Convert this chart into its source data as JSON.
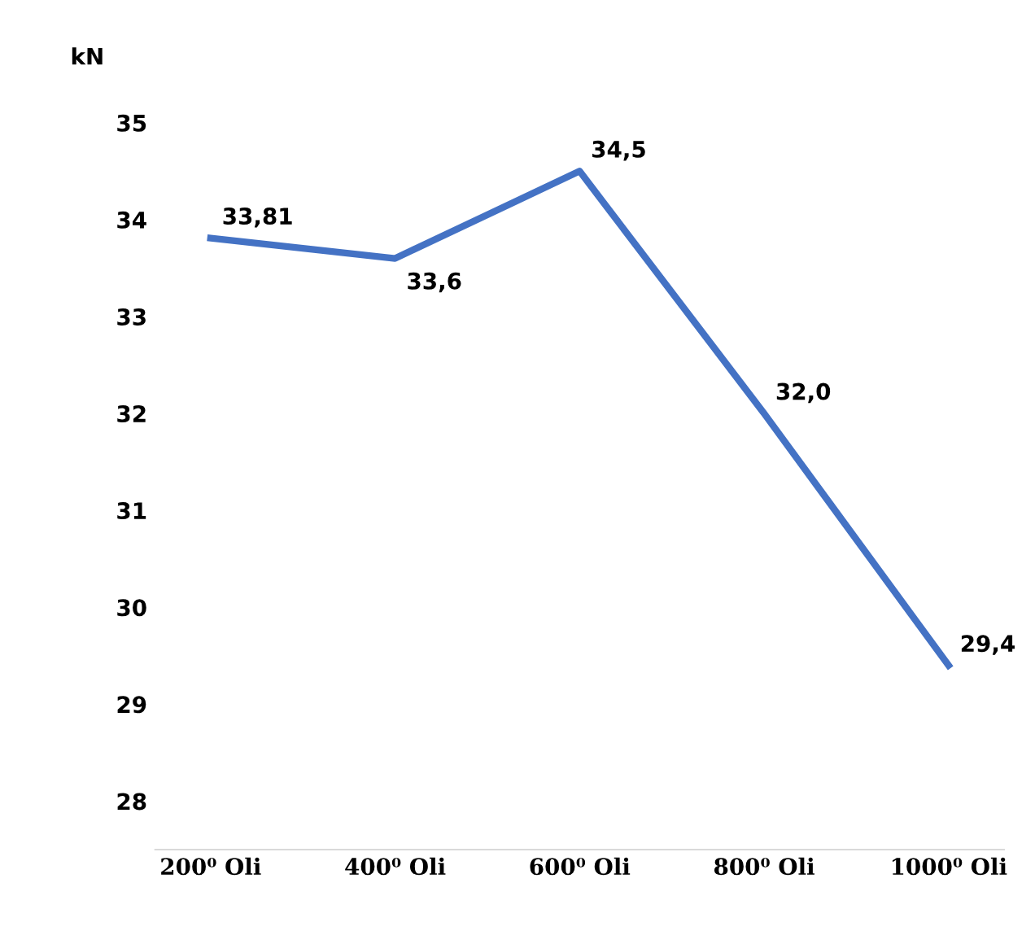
{
  "chart_data": {
    "type": "line",
    "ylabel": "kN",
    "categories": [
      "200⁰ Oli",
      "400⁰ Oli",
      "600⁰ Oli",
      "800⁰ Oli",
      "1000⁰ Oli"
    ],
    "series": [
      {
        "color": "#4472c4",
        "values": [
          33.81,
          33.6,
          34.5,
          32.0,
          29.4
        ],
        "value_labels": [
          "33,81",
          "33,6",
          "34,5",
          "32,0",
          "29,4"
        ]
      }
    ],
    "ylim": [
      27.5,
      35
    ],
    "yticks": [
      28,
      29,
      30,
      31,
      32,
      33,
      34,
      35
    ],
    "grid": false,
    "legend": false,
    "marker": "none",
    "line_style": "solid"
  }
}
